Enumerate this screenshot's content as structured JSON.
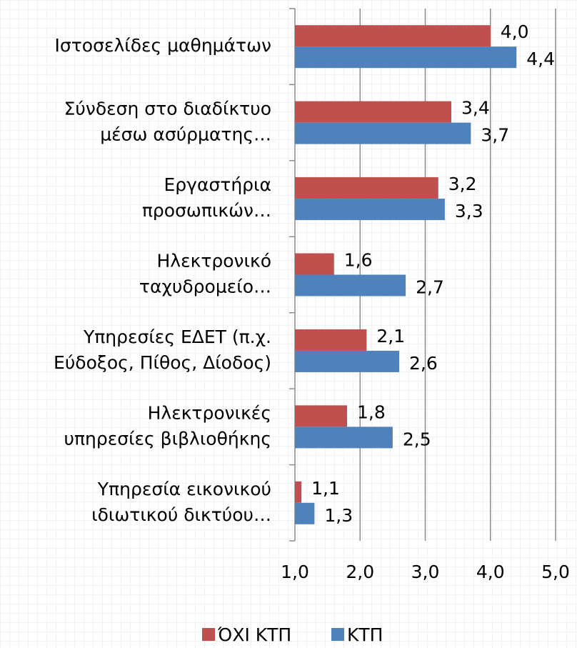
{
  "chart_data": {
    "type": "bar",
    "orientation": "horizontal",
    "categories": [
      "Ιστοσελίδες μαθημάτων",
      "Σύνδεση στο διαδίκτυο\nμέσω ασύρματης…",
      "Εργαστήρια\nπροσωπικών…",
      "Ηλεκτρονικό\nταχυδρομείο…",
      "Υπηρεσίες ΕΔΕΤ (π.χ.\nΕύδοξος, Πίθος, Δίοδος)",
      "Ηλεκτρονικές\nυπηρεσίες βιβλιοθήκης",
      "Υπηρεσία εικονικού\nιδιωτικού δικτύου…"
    ],
    "series": [
      {
        "name": "ΌΧΙ ΚΤΠ",
        "color": "#c0504d",
        "values": [
          4.0,
          3.4,
          3.2,
          1.6,
          2.1,
          1.8,
          1.1
        ],
        "value_labels": [
          "4,0",
          "3,4",
          "3,2",
          "1,6",
          "2,1",
          "1,8",
          "1,1"
        ]
      },
      {
        "name": "ΚΤΠ",
        "color": "#4f81bd",
        "values": [
          4.4,
          3.7,
          3.3,
          2.7,
          2.6,
          2.5,
          1.3
        ],
        "value_labels": [
          "4,4",
          "3,7",
          "3,3",
          "2,7",
          "2,6",
          "2,5",
          "1,3"
        ]
      }
    ],
    "xlim": [
      1,
      5
    ],
    "xticks": [
      {
        "value": 1,
        "label": "1,0"
      },
      {
        "value": 2,
        "label": "2,0"
      },
      {
        "value": 3,
        "label": "3,0"
      },
      {
        "value": 4,
        "label": "4,0"
      },
      {
        "value": 5,
        "label": "5,0"
      }
    ],
    "grid": true,
    "legend": "bottom"
  }
}
